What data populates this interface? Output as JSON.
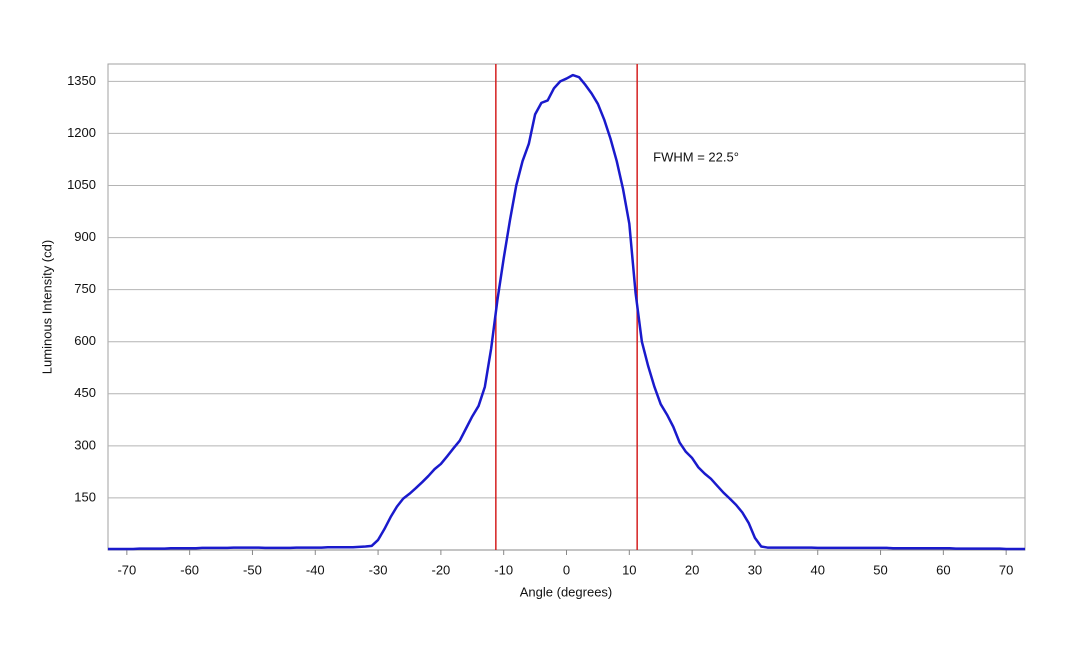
{
  "chart_data": {
    "type": "line",
    "x": [
      -73,
      -72,
      -71,
      -70,
      -69,
      -68,
      -67,
      -66,
      -65,
      -64,
      -63,
      -62,
      -61,
      -60,
      -59,
      -58,
      -57,
      -56,
      -55,
      -54,
      -53,
      -52,
      -51,
      -50,
      -49,
      -48,
      -47,
      -46,
      -45,
      -44,
      -43,
      -42,
      -41,
      -40,
      -39,
      -38,
      -37,
      -36,
      -35,
      -34,
      -33,
      -32,
      -31,
      -30,
      -29,
      -28,
      -27,
      -26,
      -25,
      -24,
      -23,
      -22,
      -21,
      -20,
      -19,
      -18,
      -17,
      -16,
      -15,
      -14,
      -13,
      -12,
      -11,
      -10,
      -9,
      -8,
      -7,
      -6,
      -5,
      -4,
      -3,
      -2,
      -1,
      0,
      1,
      2,
      3,
      4,
      5,
      6,
      7,
      8,
      9,
      10,
      11,
      12,
      13,
      14,
      15,
      16,
      17,
      18,
      19,
      20,
      21,
      22,
      23,
      24,
      25,
      26,
      27,
      28,
      29,
      30,
      31,
      32,
      33,
      34,
      35,
      36,
      37,
      38,
      39,
      40,
      41,
      42,
      43,
      44,
      45,
      46,
      47,
      48,
      49,
      50,
      51,
      52,
      53,
      54,
      55,
      56,
      57,
      58,
      59,
      60,
      61,
      62,
      63,
      64,
      65,
      66,
      67,
      68,
      69,
      70,
      71,
      72,
      73
    ],
    "series": [
      {
        "color": "#1a1acc",
        "values": [
          3,
          3,
          3,
          3,
          3,
          4,
          4,
          4,
          4,
          4,
          5,
          5,
          5,
          5,
          5,
          6,
          6,
          6,
          6,
          6,
          7,
          7,
          7,
          7,
          7,
          6,
          6,
          6,
          6,
          6,
          7,
          7,
          7,
          7,
          7,
          8,
          8,
          8,
          8,
          8,
          9,
          10,
          12,
          29,
          60,
          95,
          125,
          148,
          162,
          178,
          195,
          213,
          233,
          248,
          270,
          293,
          315,
          350,
          385,
          415,
          470,
          580,
          720,
          840,
          950,
          1050,
          1120,
          1170,
          1255,
          1288,
          1295,
          1330,
          1350,
          1358,
          1368,
          1362,
          1340,
          1315,
          1285,
          1240,
          1185,
          1120,
          1040,
          940,
          740,
          600,
          530,
          470,
          420,
          390,
          355,
          310,
          283,
          265,
          238,
          220,
          205,
          185,
          165,
          148,
          130,
          108,
          78,
          35,
          10,
          7,
          7,
          7,
          7,
          7,
          7,
          7,
          7,
          6,
          6,
          6,
          6,
          6,
          6,
          6,
          6,
          6,
          6,
          6,
          6,
          5,
          5,
          5,
          5,
          5,
          5,
          5,
          5,
          5,
          5,
          4,
          4,
          4,
          4,
          4,
          4,
          4,
          4,
          3,
          3,
          3,
          3
        ]
      }
    ],
    "vlines": [
      -11.25,
      11.25
    ],
    "vline_color": "#d42020",
    "annotation": "FWHM = 22.5°",
    "xlabel": "Angle (degrees)",
    "ylabel": "Luminous Intensity (cd)",
    "xlim": [
      -73,
      73
    ],
    "xticks": [
      -70,
      -60,
      -50,
      -40,
      -30,
      -20,
      -10,
      0,
      10,
      20,
      30,
      40,
      50,
      60,
      70
    ],
    "ylim": [
      0,
      1400
    ],
    "yticks": [
      150,
      300,
      450,
      600,
      750,
      900,
      1050,
      1200,
      1350
    ],
    "grid": true
  }
}
